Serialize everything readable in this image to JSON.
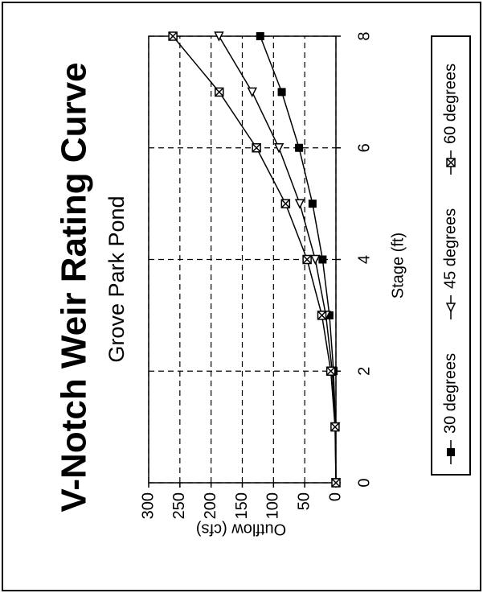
{
  "chart_data": {
    "type": "line",
    "title": "V-Notch Weir Rating Curve",
    "subtitle": "Grove Park Pond",
    "x_label": "Stage (ft)",
    "y_label": "Outflow (cfs)",
    "x": [
      0,
      1,
      2,
      3,
      4,
      5,
      6,
      7,
      8
    ],
    "series": [
      {
        "name": "30 degrees",
        "color": "#000000",
        "marker": "filled-square",
        "values": [
          0,
          0.7,
          3.8,
          10.4,
          21.4,
          37.5,
          59.1,
          86.8,
          121.3
        ]
      },
      {
        "name": "45 degrees",
        "color": "#000000",
        "marker": "open-triangle",
        "values": [
          0,
          1.0,
          5.9,
          16.1,
          33.1,
          57.9,
          91.3,
          134.2,
          187.4
        ]
      },
      {
        "name": "60 degrees",
        "color": "#000000",
        "marker": "crossed-square",
        "values": [
          0,
          1.4,
          8.2,
          22.5,
          46.2,
          80.7,
          127.3,
          187.0,
          261.2
        ]
      }
    ],
    "xlim": [
      0,
      8
    ],
    "xticks": [
      0,
      2,
      4,
      6,
      8
    ],
    "ylim": [
      0,
      300
    ],
    "yticks": [
      0,
      50,
      100,
      150,
      200,
      250,
      300
    ],
    "grid": true,
    "legend": "bottom"
  }
}
